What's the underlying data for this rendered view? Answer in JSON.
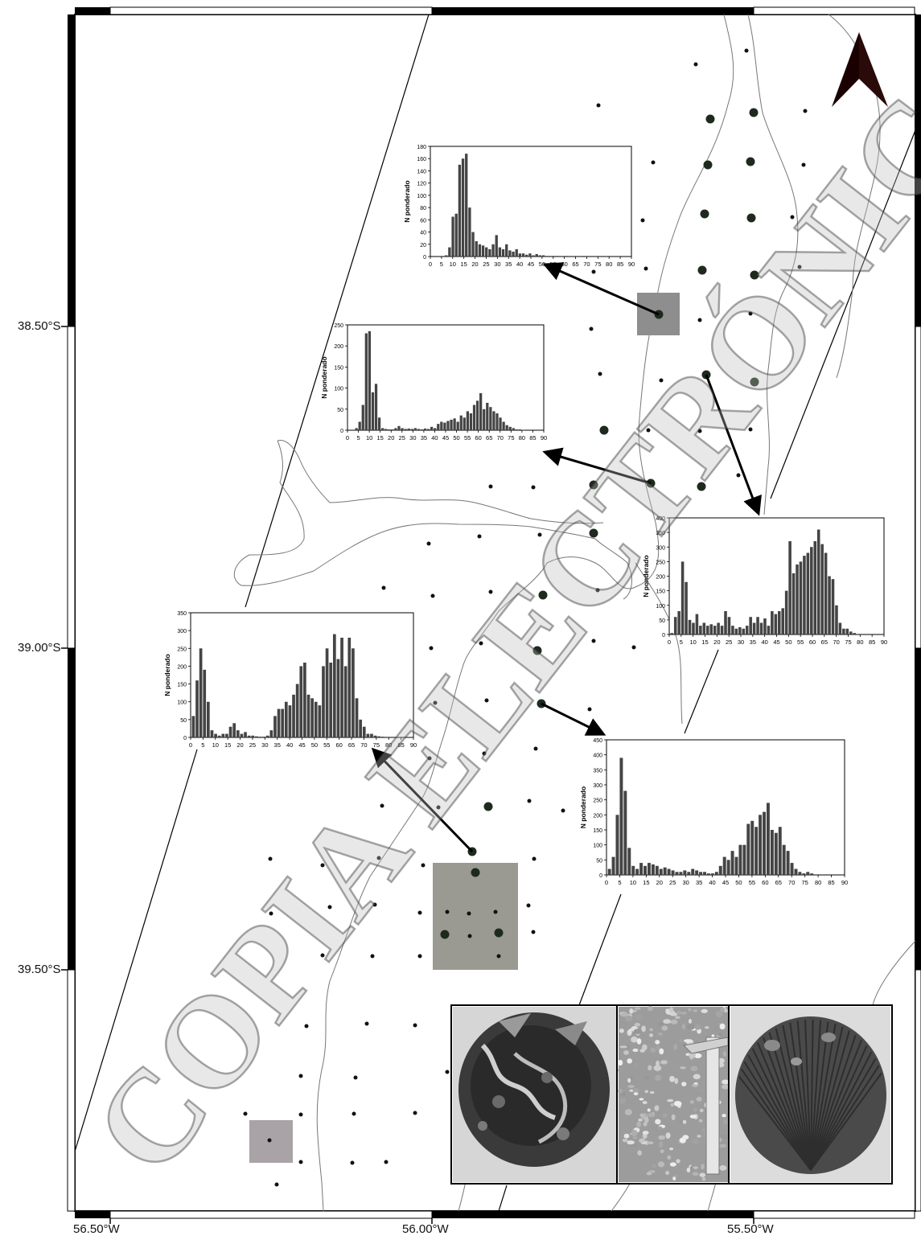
{
  "axes": {
    "lat_labels": [
      "38.50°S",
      "39.00°S",
      "39.50°S"
    ],
    "lon_labels": [
      "56.50°W",
      "56.00°W",
      "55.50°W"
    ]
  },
  "watermark": "COPIA ELECTRÓNICA INIDEP",
  "north_arrow_icon": "north-arrow-icon",
  "photos": [
    "scallop-with-epibionts-photo",
    "gravel-sediment-with-ruler-photo",
    "scallop-shell-photo"
  ],
  "chart_data": [
    {
      "type": "bar",
      "ylabel": "N ponderado",
      "ylim": [
        0,
        180
      ],
      "yticks": [
        0,
        20,
        40,
        60,
        80,
        100,
        120,
        140,
        160,
        180
      ],
      "xticks": [
        0,
        5,
        10,
        15,
        20,
        25,
        30,
        35,
        40,
        45,
        50,
        55,
        60,
        65,
        70,
        75,
        80,
        85,
        90
      ],
      "values": [
        0,
        0,
        0,
        0,
        2,
        15,
        65,
        70,
        150,
        160,
        168,
        80,
        40,
        25,
        20,
        18,
        15,
        12,
        20,
        35,
        15,
        12,
        20,
        10,
        8,
        12,
        5,
        5,
        3,
        5,
        2,
        4,
        2,
        2,
        1,
        1,
        1,
        1,
        0,
        0,
        1,
        0,
        0,
        0,
        0,
        1
      ]
    },
    {
      "type": "bar",
      "ylabel": "N ponderado",
      "ylim": [
        0,
        250
      ],
      "yticks": [
        0,
        50,
        100,
        150,
        200,
        250
      ],
      "xticks": [
        0,
        5,
        10,
        15,
        20,
        25,
        30,
        35,
        40,
        45,
        50,
        55,
        60,
        65,
        70,
        75,
        80,
        85,
        90
      ],
      "values": [
        0,
        0,
        5,
        20,
        60,
        230,
        235,
        90,
        110,
        30,
        5,
        3,
        2,
        2,
        5,
        10,
        5,
        3,
        4,
        3,
        5,
        3,
        2,
        4,
        3,
        8,
        5,
        15,
        20,
        18,
        22,
        25,
        28,
        20,
        35,
        30,
        45,
        40,
        60,
        70,
        88,
        50,
        65,
        55,
        45,
        40,
        30,
        20,
        12,
        8,
        5,
        2,
        2,
        1,
        0,
        0,
        0,
        0,
        0,
        0
      ]
    },
    {
      "type": "bar",
      "ylabel": "N ponderado",
      "ylim": [
        0,
        400
      ],
      "yticks": [
        0,
        50,
        100,
        150,
        200,
        250,
        300,
        350,
        400
      ],
      "xticks": [
        0,
        5,
        10,
        15,
        20,
        25,
        30,
        35,
        40,
        45,
        50,
        55,
        60,
        65,
        70,
        75,
        80,
        85,
        90
      ],
      "values": [
        5,
        60,
        80,
        250,
        180,
        50,
        40,
        70,
        30,
        40,
        30,
        35,
        30,
        40,
        30,
        80,
        60,
        30,
        20,
        25,
        20,
        30,
        60,
        40,
        60,
        40,
        55,
        30,
        80,
        70,
        80,
        90,
        150,
        320,
        210,
        240,
        250,
        270,
        280,
        300,
        320,
        360,
        310,
        280,
        200,
        190,
        100,
        40,
        20,
        20,
        10,
        5,
        0,
        0,
        0,
        0,
        0,
        0,
        0,
        0
      ]
    },
    {
      "type": "bar",
      "ylabel": "N ponderado",
      "ylim": [
        0,
        350
      ],
      "yticks": [
        0,
        50,
        100,
        150,
        200,
        250,
        300,
        350
      ],
      "xticks": [
        0,
        5,
        10,
        15,
        20,
        25,
        30,
        35,
        40,
        45,
        50,
        55,
        60,
        65,
        70,
        75,
        80,
        85,
        90
      ],
      "values": [
        60,
        160,
        250,
        190,
        100,
        20,
        10,
        5,
        10,
        10,
        30,
        40,
        20,
        10,
        15,
        5,
        5,
        3,
        2,
        2,
        5,
        20,
        60,
        80,
        80,
        100,
        90,
        120,
        150,
        200,
        210,
        120,
        110,
        100,
        90,
        200,
        250,
        210,
        290,
        220,
        280,
        200,
        280,
        250,
        110,
        50,
        30,
        10,
        10,
        5,
        3,
        2,
        0,
        0,
        0,
        0,
        0,
        0,
        0,
        0
      ]
    },
    {
      "type": "bar",
      "ylabel": "N ponderado",
      "ylim": [
        0,
        450
      ],
      "yticks": [
        0,
        50,
        100,
        150,
        200,
        250,
        300,
        350,
        400,
        450
      ],
      "xticks": [
        0,
        5,
        10,
        15,
        20,
        25,
        30,
        35,
        40,
        45,
        50,
        55,
        60,
        65,
        70,
        75,
        80,
        85,
        90
      ],
      "values": [
        20,
        60,
        200,
        390,
        280,
        90,
        30,
        20,
        40,
        30,
        40,
        35,
        30,
        20,
        25,
        20,
        15,
        10,
        10,
        15,
        10,
        20,
        15,
        10,
        10,
        5,
        5,
        10,
        30,
        60,
        50,
        80,
        60,
        100,
        100,
        170,
        180,
        160,
        200,
        210,
        240,
        150,
        140,
        160,
        100,
        80,
        40,
        20,
        10,
        5,
        10,
        5,
        0,
        0,
        0,
        0,
        0,
        0,
        0,
        0
      ]
    }
  ]
}
